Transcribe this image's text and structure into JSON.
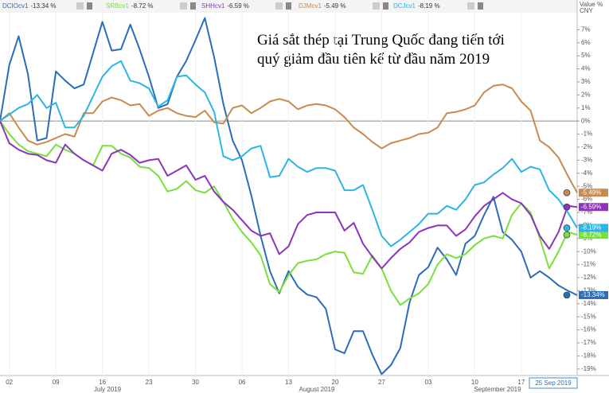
{
  "chart_data": {
    "type": "line",
    "annotations": [
      "Giá sắt thép tại Trung Quốc đang tiến tới",
      "quý giảm đầu tiên kể từ đầu năm 2019"
    ],
    "axis_header": [
      "Value %",
      "CNY"
    ],
    "date_badge": "25 Sep 2019",
    "period_labels": [
      "July 2019",
      "August 2019",
      "September 2019"
    ],
    "categories": [
      null,
      "02",
      null,
      null,
      null,
      null,
      "09",
      null,
      null,
      null,
      null,
      "16",
      null,
      null,
      null,
      null,
      "23",
      null,
      null,
      null,
      null,
      "30",
      null,
      null,
      null,
      null,
      "06",
      null,
      null,
      null,
      null,
      "13",
      null,
      null,
      null,
      null,
      "20",
      null,
      null,
      null,
      null,
      "27",
      null,
      null,
      null,
      null,
      "03",
      null,
      null,
      null,
      null,
      "10",
      null,
      null,
      null,
      null,
      "17",
      null,
      null,
      null,
      null,
      null,
      null
    ],
    "ylim": [
      -19.5,
      8.3
    ],
    "yticks": [
      {
        "value": 7,
        "label": "7%"
      },
      {
        "value": 6,
        "label": "6%"
      },
      {
        "value": 5,
        "label": "5%"
      },
      {
        "value": 4,
        "label": "4%"
      },
      {
        "value": 3,
        "label": "3%"
      },
      {
        "value": 2,
        "label": "2%"
      },
      {
        "value": 1,
        "label": "1%"
      },
      {
        "value": 0,
        "label": "0%"
      },
      {
        "value": -1,
        "label": "-1%"
      },
      {
        "value": -2,
        "label": "-2%"
      },
      {
        "value": -3,
        "label": "-3%"
      },
      {
        "value": -4,
        "label": "-4%"
      },
      {
        "value": -5,
        "label": "-5%"
      },
      {
        "value": -6,
        "label": "-6%"
      },
      {
        "value": -7,
        "label": "-7%"
      },
      {
        "value": -8,
        "label": "-8%"
      },
      {
        "value": -9,
        "label": "-9%"
      },
      {
        "value": -10,
        "label": "-10%"
      },
      {
        "value": -11,
        "label": "-11%"
      },
      {
        "value": -12,
        "label": "-12%"
      },
      {
        "value": -13,
        "label": "-13%"
      },
      {
        "value": -14,
        "label": "-14%"
      },
      {
        "value": -15,
        "label": "-15%"
      },
      {
        "value": -16,
        "label": "-16%"
      },
      {
        "value": -17,
        "label": "-17%"
      },
      {
        "value": -18,
        "label": "-18%"
      },
      {
        "value": -19,
        "label": "-19%"
      }
    ],
    "series": [
      {
        "name": "DCIOcv1",
        "color": "#2a6db8",
        "legend_value": "-13.34 %",
        "end_label": "-13.34%",
        "values": [
          0,
          4.3,
          6.5,
          3.6,
          -1.5,
          -1.3,
          3.8,
          3.1,
          2.5,
          2.8,
          5.2,
          7.6,
          5.4,
          5.5,
          7.4,
          5.5,
          3.4,
          1.0,
          1.3,
          3.4,
          4.6,
          6.2,
          7.9,
          4.9,
          1.3,
          -1.5,
          -3.0,
          -5.7,
          -8.8,
          -11.5,
          -13.2,
          -11.5,
          -12.7,
          -13.3,
          -13.5,
          -14.4,
          -17.5,
          -17.8,
          -16.1,
          -16.1,
          -17.9,
          -19.4,
          -18.7,
          -17.4,
          -13.9,
          -11.8,
          -11.2,
          -9.7,
          -10.6,
          -11.8,
          -9.4,
          -8.8,
          -7.2,
          -5.8,
          -8.5,
          -9.1,
          -10.0,
          -12.0,
          -11.5,
          -12.0,
          -12.6,
          -13.0,
          -13.34
        ]
      },
      {
        "name": "SRBcv1",
        "color": "#78e03a",
        "legend_value": "-8.72 %",
        "end_label": "-8.72%",
        "values": [
          0,
          -1.0,
          -1.8,
          -2.3,
          -2.5,
          -2.7,
          -1.8,
          -2.2,
          -2.5,
          -3.0,
          -3.4,
          -1.9,
          -1.9,
          -2.5,
          -2.8,
          -3.5,
          -3.6,
          -4.2,
          -5.4,
          -5.2,
          -4.6,
          -5.3,
          -5.5,
          -5.0,
          -6.2,
          -7.5,
          -8.5,
          -9.3,
          -10.3,
          -12.5,
          -13.1,
          -11.8,
          -10.9,
          -10.7,
          -10.6,
          -10.2,
          -10.0,
          -10.1,
          -11.6,
          -11.7,
          -10.3,
          -11.3,
          -13.0,
          -14.1,
          -13.6,
          -13.2,
          -12.5,
          -11.0,
          -10.2,
          -10.5,
          -10.2,
          -9.5,
          -9.0,
          -8.8,
          -9.0,
          -7.2,
          -6.3,
          -7.0,
          -9.0,
          -11.3,
          -10.0,
          -8.5,
          -8.72
        ]
      },
      {
        "name": "SHHcv1",
        "color": "#8b35b8",
        "legend_value": "-6.59 %",
        "end_label": "-6.59%",
        "values": [
          0,
          -1.7,
          -2.2,
          -2.5,
          -2.6,
          -3.0,
          -3.2,
          -1.8,
          -2.5,
          -3.0,
          -3.4,
          -3.8,
          -2.5,
          -2.2,
          -2.6,
          -3.2,
          -3.0,
          -2.9,
          -4.2,
          -3.8,
          -3.4,
          -4.5,
          -4.2,
          -5.4,
          -6.2,
          -6.8,
          -7.6,
          -8.4,
          -8.8,
          -8.6,
          -10.2,
          -9.6,
          -7.9,
          -7.2,
          -7.0,
          -7.0,
          -7.0,
          -8.4,
          -7.8,
          -9.4,
          -10.4,
          -11.3,
          -10.5,
          -9.8,
          -9.3,
          -8.5,
          -8.2,
          -8.0,
          -8.0,
          -8.8,
          -8.3,
          -7.3,
          -6.5,
          -6.0,
          -5.5,
          -6.0,
          -6.3,
          -7.2,
          -8.8,
          -9.8,
          -8.5,
          -6.5,
          -6.59
        ]
      },
      {
        "name": "DJMcv1",
        "color": "#c98a4f",
        "legend_value": "-5.49 %",
        "end_label": "-5.49%",
        "values": [
          0,
          0.6,
          -0.5,
          -1.5,
          -1.8,
          -1.6,
          -1.3,
          -1.0,
          -1.2,
          0.6,
          0.6,
          1.5,
          1.8,
          1.6,
          1.2,
          1.3,
          0.4,
          0.8,
          1.0,
          0.6,
          0.4,
          0.3,
          0.8,
          -0.1,
          -0.2,
          1.0,
          1.2,
          0.6,
          1.0,
          1.5,
          1.7,
          1.5,
          0.9,
          1.2,
          1.3,
          1.2,
          0.9,
          0.3,
          -0.5,
          -1.0,
          -1.6,
          -2.1,
          -1.7,
          -1.5,
          -1.3,
          -1.0,
          -0.9,
          -0.5,
          0.6,
          0.7,
          0.9,
          1.2,
          2.2,
          2.7,
          2.8,
          2.5,
          1.5,
          0.8,
          -1.5,
          -2.0,
          -2.8,
          -4.2,
          -5.49
        ]
      },
      {
        "name": "DCJcv1",
        "color": "#2bb5e6",
        "legend_value": "-8.19 %",
        "end_label": "-8.19%",
        "values": [
          0,
          0.5,
          1.0,
          1.3,
          2.0,
          1.0,
          1.4,
          -0.5,
          -0.5,
          0.4,
          1.9,
          3.4,
          4.2,
          4.6,
          3.1,
          2.9,
          2.5,
          1.1,
          1.6,
          3.4,
          3.5,
          2.8,
          2.2,
          0.7,
          -2.7,
          -3.0,
          -2.7,
          -2.1,
          -1.9,
          -4.3,
          -4.2,
          -2.9,
          -3.5,
          -3.9,
          -3.6,
          -3.6,
          -3.8,
          -5.3,
          -5.3,
          -4.9,
          -6.8,
          -8.8,
          -9.6,
          -9.1,
          -8.5,
          -7.9,
          -7.1,
          -7.1,
          -6.5,
          -6.8,
          -6.0,
          -4.9,
          -4.7,
          -4.1,
          -3.6,
          -2.9,
          -3.9,
          -3.5,
          -3.7,
          -5.3,
          -6.0,
          -7.0,
          -8.19
        ]
      }
    ]
  }
}
